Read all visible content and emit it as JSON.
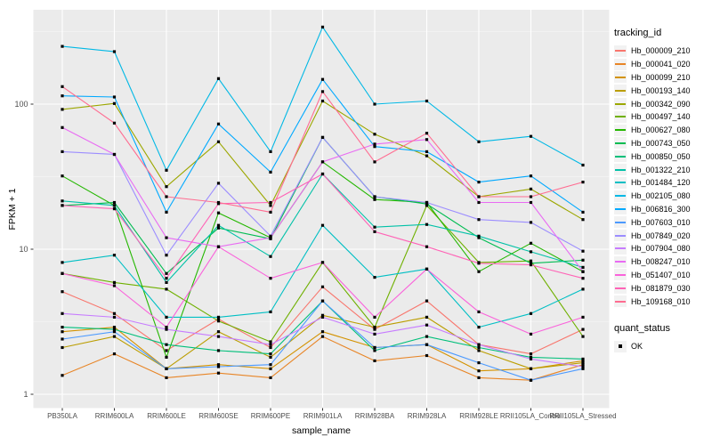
{
  "chart_data": {
    "type": "line",
    "title": "",
    "xlabel": "sample_name",
    "ylabel": "FPKM + 1",
    "y_scale": "log10",
    "y_ticks": [
      1,
      10,
      100
    ],
    "y_tick_labels": [
      "1",
      "10",
      "100"
    ],
    "y_minor_ticks": [
      3.1623,
      31.623,
      316.23
    ],
    "ylim_log": [
      0.9,
      400
    ],
    "grid": "on",
    "marker": "black-square",
    "legend": {
      "title": "tracking_id",
      "position": "right"
    },
    "quant_legend": {
      "title": "quant_status",
      "items": [
        "OK"
      ]
    },
    "colors": {
      "panel_bg": "#EBEBEB",
      "grid_major": "#FFFFFF",
      "grid_minor": "#F7F7F7",
      "point": "#000000",
      "tick_label": "#4D4D4D",
      "tick_mark": "#333333",
      "legend_key_bg": "#F2F2F2"
    },
    "categories": [
      "PB350LA",
      "RRIM600LA",
      "RRIM600LE",
      "RRIM600SE",
      "RRIM600PE",
      "RRIM901LA",
      "RRIM928BA",
      "RRIM928LA",
      "RRIM928LE",
      "RRII105LA_Control",
      "RRII105LA_Stressed"
    ],
    "series": [
      {
        "name": "Hb_000009_210",
        "color": "#F8766D",
        "values": [
          5.1,
          3.6,
          2.0,
          3.3,
          2.1,
          5.5,
          2.8,
          4.4,
          2.2,
          1.9,
          2.8
        ]
      },
      {
        "name": "Hb_000041_020",
        "color": "#E88526",
        "values": [
          1.35,
          1.9,
          1.3,
          1.4,
          1.3,
          2.5,
          1.7,
          1.85,
          1.3,
          1.25,
          1.6
        ]
      },
      {
        "name": "Hb_000099_210",
        "color": "#D39200",
        "values": [
          2.7,
          2.9,
          1.5,
          1.6,
          1.5,
          2.7,
          2.1,
          2.2,
          1.45,
          1.5,
          1.7
        ]
      },
      {
        "name": "Hb_000193_140",
        "color": "#BB9D00",
        "values": [
          2.1,
          2.5,
          1.5,
          2.7,
          1.8,
          3.5,
          2.9,
          3.4,
          2.0,
          1.5,
          1.65
        ]
      },
      {
        "name": "Hb_000342_090",
        "color": "#9CA700",
        "values": [
          92,
          101,
          27,
          55,
          20,
          105,
          62,
          44,
          23,
          26,
          16
        ]
      },
      {
        "name": "Hb_000497_140",
        "color": "#6FB000",
        "values": [
          6.8,
          5.9,
          5.3,
          3.2,
          2.3,
          8.1,
          2.9,
          20,
          8.1,
          8.3,
          2.5
        ]
      },
      {
        "name": "Hb_000627_080",
        "color": "#24B700",
        "values": [
          32,
          20,
          1.8,
          17.8,
          12,
          40,
          22,
          21,
          7.0,
          11,
          7.0
        ]
      },
      {
        "name": "Hb_000743_050",
        "color": "#00BC51",
        "values": [
          20,
          21,
          6.8,
          14,
          11.8,
          59,
          23,
          20.5,
          12,
          8.0,
          8.4
        ]
      },
      {
        "name": "Hb_000850_050",
        "color": "#00BF7A",
        "values": [
          2.9,
          2.8,
          2.2,
          2.0,
          1.9,
          4.4,
          2.0,
          2.5,
          2.1,
          1.8,
          1.75
        ]
      },
      {
        "name": "Hb_001322_210",
        "color": "#00C1A7",
        "values": [
          21.5,
          20,
          5.9,
          14.6,
          8.9,
          33,
          14.2,
          14.8,
          12.3,
          9.6,
          7.5
        ]
      },
      {
        "name": "Hb_001484_120",
        "color": "#00BFC4",
        "values": [
          8.1,
          9.1,
          3.4,
          3.4,
          3.7,
          14.6,
          6.4,
          7.3,
          2.9,
          3.6,
          5.3
        ]
      },
      {
        "name": "Hb_002105_080",
        "color": "#00B8E5",
        "values": [
          250,
          230,
          35,
          150,
          47,
          340,
          100,
          105,
          55,
          60,
          38
        ]
      },
      {
        "name": "Hb_006816_300",
        "color": "#00A9FF",
        "values": [
          114,
          112,
          18,
          73,
          34,
          148,
          51,
          47,
          29,
          32,
          18
        ]
      },
      {
        "name": "Hb_007603_010",
        "color": "#4C9AFF",
        "values": [
          2.4,
          2.7,
          1.5,
          1.55,
          1.6,
          4.4,
          2.1,
          2.2,
          1.65,
          1.25,
          1.5
        ]
      },
      {
        "name": "Hb_007849_020",
        "color": "#9C8DFF",
        "values": [
          47,
          45,
          9.1,
          28.5,
          12.3,
          59,
          23,
          21,
          16,
          15.3,
          9.7
        ]
      },
      {
        "name": "Hb_007904_080",
        "color": "#C77CFF",
        "values": [
          3.6,
          3.4,
          2.8,
          2.5,
          2.2,
          3.4,
          2.6,
          3.0,
          2.2,
          1.75,
          1.55
        ]
      },
      {
        "name": "Hb_008247_010",
        "color": "#E96BF3",
        "values": [
          69,
          45,
          12,
          10.4,
          12,
          40,
          53,
          57,
          21,
          21,
          7.0
        ]
      },
      {
        "name": "Hb_051407_010",
        "color": "#FA62DB",
        "values": [
          6.8,
          5.6,
          2.9,
          10.4,
          6.3,
          8.1,
          3.4,
          7.3,
          3.7,
          2.6,
          3.4
        ]
      },
      {
        "name": "Hb_081879_030",
        "color": "#FF63B6",
        "values": [
          20,
          19,
          6.3,
          20.6,
          21,
          33,
          13.2,
          10.4,
          8.0,
          7.8,
          6.3
        ]
      },
      {
        "name": "Hb_109168_010",
        "color": "#FF6C91",
        "values": [
          132,
          74,
          23,
          21,
          18,
          122,
          40,
          63,
          23,
          23,
          29
        ]
      }
    ]
  }
}
